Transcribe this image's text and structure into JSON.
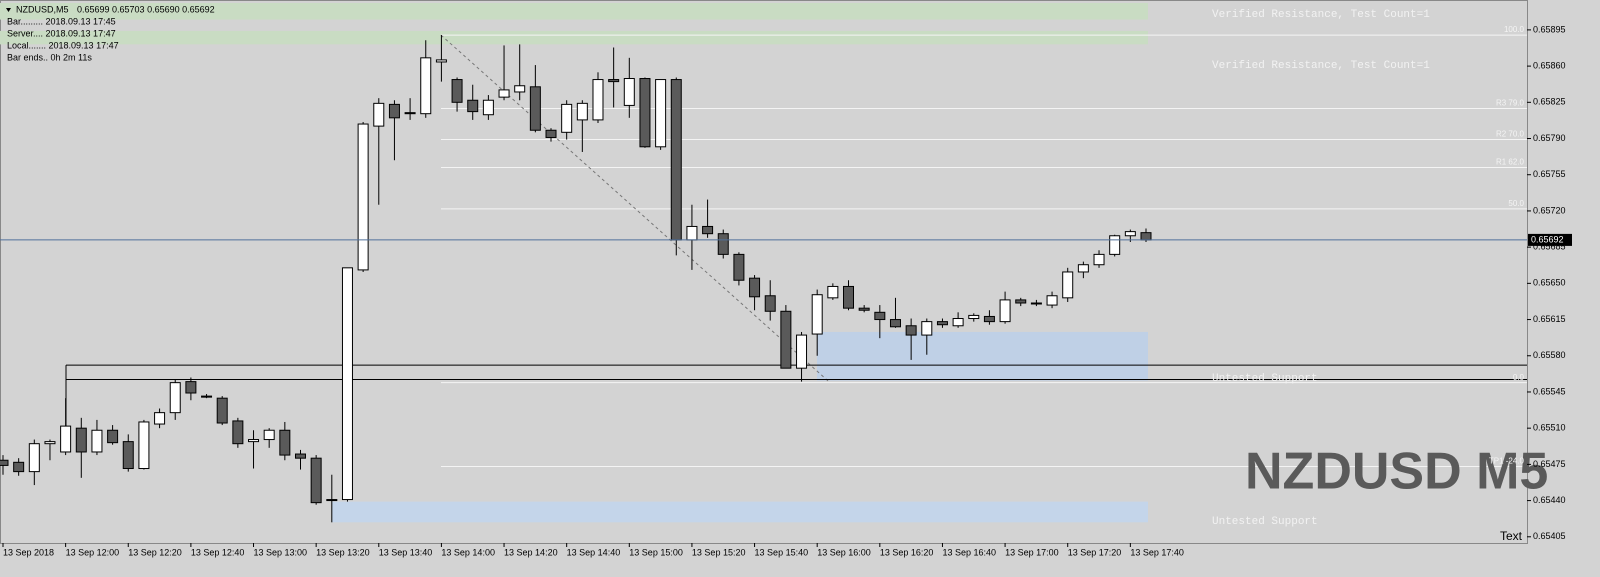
{
  "chart_data": {
    "type": "candlestick",
    "header": {
      "symbol": "NZDUSD,M5",
      "quote": "0.65699 0.65703 0.65690 0.65692",
      "lines": [
        "Bar......... 2018.09.13 17:45",
        "Server.... 2018.09.13 17:47",
        "Local....... 2018.09.13 17:47",
        "Bar ends.. 0h 2m 11s"
      ]
    },
    "watermark": "NZDUSD M5",
    "corner_text": "Text",
    "categories": [
      "13 Sep 2018",
      null,
      null,
      null,
      "13 Sep 12:00",
      null,
      null,
      null,
      "13 Sep 12:20",
      null,
      null,
      null,
      "13 Sep 12:40",
      null,
      null,
      null,
      "13 Sep 13:00",
      null,
      null,
      null,
      "13 Sep 13:20",
      null,
      null,
      null,
      "13 Sep 13:40",
      null,
      null,
      null,
      "13 Sep 14:00",
      null,
      null,
      null,
      "13 Sep 14:20",
      null,
      null,
      null,
      "13 Sep 14:40",
      null,
      null,
      null,
      "13 Sep 15:00",
      null,
      null,
      null,
      "13 Sep 15:20",
      null,
      null,
      null,
      "13 Sep 15:40",
      null,
      null,
      null,
      "13 Sep 16:00",
      null,
      null,
      null,
      "13 Sep 16:20",
      null,
      null,
      null,
      "13 Sep 16:40",
      null,
      null,
      null,
      "13 Sep 17:00",
      null,
      null,
      null,
      "13 Sep 17:20",
      null,
      null,
      null,
      "13 Sep 17:40",
      null
    ],
    "open": [
      0.65479,
      0.65477,
      0.65468,
      0.65495,
      0.65487,
      0.6551,
      0.65487,
      0.65508,
      0.65497,
      0.65471,
      0.65514,
      0.65525,
      0.65555,
      0.65541,
      0.65539,
      0.65517,
      0.65497,
      0.65499,
      0.65508,
      0.65485,
      0.65481,
      0.65441,
      0.65441,
      0.65663,
      0.65802,
      0.65823,
      0.65815,
      0.65814,
      0.65864,
      0.65847,
      0.65827,
      0.65813,
      0.6583,
      0.65835,
      0.6584,
      0.65798,
      0.65796,
      0.65808,
      0.65808,
      0.65847,
      0.65822,
      0.65848,
      0.65782,
      0.65847,
      0.65692,
      0.65705,
      0.65698,
      0.65678,
      0.65655,
      0.65638,
      0.65623,
      0.65568,
      0.65601,
      0.65636,
      0.65647,
      0.65626,
      0.65622,
      0.65615,
      0.65609,
      0.656,
      0.65613,
      0.65609,
      0.65616,
      0.65618,
      0.65613,
      0.65634,
      0.65631,
      0.65629,
      0.65636,
      0.65661,
      0.65668,
      0.65678,
      0.65696,
      0.65699
    ],
    "high": [
      0.65484,
      0.65481,
      0.65499,
      0.65499,
      0.65539,
      0.6552,
      0.65518,
      0.65513,
      0.65504,
      0.65518,
      0.65529,
      0.65557,
      0.65559,
      0.65543,
      0.65541,
      0.6552,
      0.65508,
      0.6551,
      0.65516,
      0.65489,
      0.65484,
      0.65465,
      0.65665,
      0.65806,
      0.65829,
      0.65827,
      0.65829,
      0.65885,
      0.6589,
      0.65849,
      0.65842,
      0.65832,
      0.6588,
      0.65881,
      0.65861,
      0.658,
      0.65827,
      0.65827,
      0.65854,
      0.65878,
      0.65868,
      0.65849,
      0.65847,
      0.65849,
      0.65726,
      0.65731,
      0.65702,
      0.6568,
      0.65658,
      0.65653,
      0.65629,
      0.65603,
      0.65644,
      0.6565,
      0.65653,
      0.65629,
      0.65629,
      0.65636,
      0.65616,
      0.65616,
      0.65616,
      0.65622,
      0.65621,
      0.65624,
      0.65642,
      0.65636,
      0.65634,
      0.65642,
      0.65665,
      0.65671,
      0.65682,
      0.65697,
      0.65702,
      0.65703
    ],
    "low": [
      0.65465,
      0.65464,
      0.65455,
      0.65479,
      0.65484,
      0.65462,
      0.65484,
      0.65494,
      0.65468,
      0.6547,
      0.6551,
      0.65518,
      0.65537,
      0.65539,
      0.65513,
      0.65491,
      0.65471,
      0.65491,
      0.65479,
      0.6547,
      0.65436,
      0.65419,
      0.65439,
      0.65661,
      0.65726,
      0.65769,
      0.65808,
      0.6581,
      0.65845,
      0.65816,
      0.65808,
      0.65808,
      0.65827,
      0.65827,
      0.65796,
      0.65787,
      0.65789,
      0.65777,
      0.65805,
      0.6582,
      0.6581,
      0.65781,
      0.65779,
      0.65677,
      0.65663,
      0.65694,
      0.65674,
      0.65648,
      0.65624,
      0.65614,
      0.65568,
      0.65555,
      0.6558,
      0.65634,
      0.65624,
      0.65622,
      0.65597,
      0.65607,
      0.65576,
      0.65581,
      0.65607,
      0.65607,
      0.65613,
      0.6561,
      0.65611,
      0.65628,
      0.65628,
      0.65626,
      0.65632,
      0.65655,
      0.65665,
      0.65676,
      0.6569,
      0.6569
    ],
    "close": [
      0.65474,
      0.65468,
      0.65495,
      0.65497,
      0.65512,
      0.65487,
      0.65508,
      0.65496,
      0.65471,
      0.65516,
      0.65525,
      0.65554,
      0.65544,
      0.6554,
      0.65515,
      0.65495,
      0.65499,
      0.65508,
      0.65484,
      0.65481,
      0.65438,
      0.65441,
      0.65665,
      0.65804,
      0.65824,
      0.6581,
      0.65814,
      0.65868,
      0.65866,
      0.65825,
      0.65816,
      0.65827,
      0.65837,
      0.65841,
      0.65798,
      0.65791,
      0.65823,
      0.65824,
      0.65847,
      0.65845,
      0.65848,
      0.65782,
      0.65847,
      0.65692,
      0.65705,
      0.65698,
      0.65678,
      0.65653,
      0.65637,
      0.65623,
      0.65568,
      0.656,
      0.65639,
      0.65647,
      0.65626,
      0.65624,
      0.65615,
      0.65608,
      0.656,
      0.65613,
      0.6561,
      0.65616,
      0.65619,
      0.65613,
      0.65634,
      0.65631,
      0.65631,
      0.65638,
      0.65661,
      0.65668,
      0.65678,
      0.65696,
      0.657,
      0.65692
    ],
    "up_color": "#ffffff",
    "down_color": "#5a5a5a",
    "ylim": [
      0.65399,
      0.65921
    ],
    "yticks": [
      0.65895,
      {
        "value": 0.6586,
        "label": "0.65860"
      },
      0.65825,
      {
        "value": 0.6579,
        "label": "0.65790"
      },
      0.65755,
      {
        "value": 0.6572,
        "label": "0.65720"
      },
      0.65685,
      {
        "value": 0.6565,
        "label": "0.65650"
      },
      0.65615,
      {
        "value": 0.6558,
        "label": "0.65580"
      },
      0.65545,
      {
        "value": 0.6551,
        "label": "0.65510"
      },
      0.65475,
      {
        "value": 0.6544,
        "label": "0.65440"
      },
      0.65405
    ],
    "last_price": 0.65692,
    "fib_levels": [
      {
        "label": "100.0",
        "price": 0.6589
      },
      {
        "label": "R3 79.0",
        "price": 0.65819
      },
      {
        "label": "R2 70.0",
        "price": 0.65789
      },
      {
        "label": "R1 62.0",
        "price": 0.65762
      },
      {
        "label": "50.0",
        "price": 0.65722
      },
      {
        "label": "0.0",
        "price": 0.65554
      },
      {
        "label": "TP1 -24.0",
        "price": 0.65473
      }
    ],
    "support_lines": [
      0.65571,
      0.65557
    ],
    "zones": [
      {
        "label": "Verified Resistance, Test Count=1",
        "high": 0.65921,
        "low": 0.65905,
        "color": "#c9dcc3"
      },
      {
        "label": "Verified Resistance, Test Count=1",
        "high": 0.65894,
        "low": 0.65881,
        "color": "#c9dcc3"
      },
      {
        "label": "Untested Support",
        "high": 0.65603,
        "low": 0.65556,
        "color": "#bfd0e6"
      },
      {
        "label": "Untested Support",
        "high": 0.65439,
        "low": 0.65419,
        "color": "#c4d5ea"
      }
    ]
  }
}
